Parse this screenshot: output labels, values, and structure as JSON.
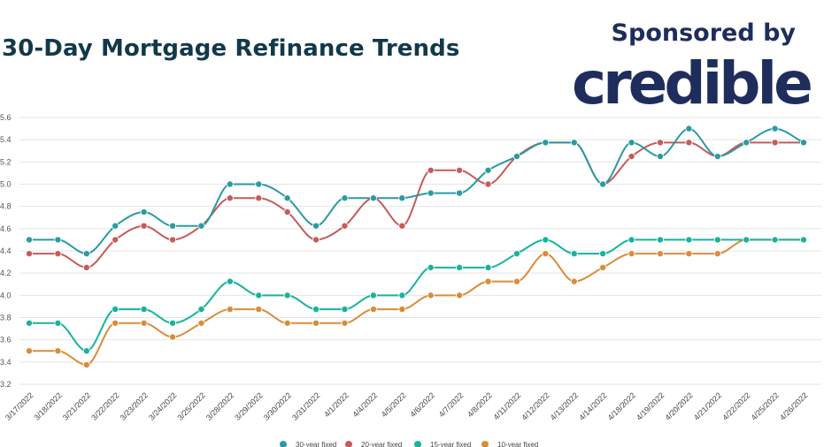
{
  "header": {
    "title": "30-Day Mortgage Refinance Trends",
    "sponsor_label": "Sponsored by",
    "brand": "credible"
  },
  "colors": {
    "title": "#12394a",
    "brand": "#1f2d5c",
    "grid": "#e4e4e4"
  },
  "chart_data": {
    "type": "line",
    "title": "30-Day Mortgage Refinance Trends",
    "xlabel": "",
    "ylabel": "",
    "ylim": [
      3.2,
      5.6
    ],
    "yticks": [
      "3.2",
      "3.4",
      "3.6",
      "3.8",
      "4.0",
      "4.2",
      "4.4",
      "4.6",
      "4.8",
      "5.0",
      "5.2",
      "5.4",
      "5.6"
    ],
    "grid": true,
    "legend_position": "bottom",
    "categories": [
      "3/17/2022",
      "3/18/2022",
      "3/21/2022",
      "3/22/2022",
      "3/23/2022",
      "3/24/2022",
      "3/25/2022",
      "3/28/2022",
      "3/29/2022",
      "3/30/2022",
      "3/31/2022",
      "4/1/2022",
      "4/4/2022",
      "4/5/2022",
      "4/6/2022",
      "4/7/2022",
      "4/8/2022",
      "4/11/2022",
      "4/12/2022",
      "4/13/2022",
      "4/14/2022",
      "4/18/2022",
      "4/19/2022",
      "4/20/2022",
      "4/21/2022",
      "4/22/2022",
      "4/25/2022",
      "4/26/2022"
    ],
    "series": [
      {
        "name": "30-year fixed",
        "color": "#2a9aa3",
        "values": [
          4.5,
          4.5,
          4.375,
          4.625,
          4.75,
          4.625,
          4.625,
          5.0,
          5.0,
          4.875,
          4.625,
          4.875,
          4.875,
          4.875,
          4.92,
          4.92,
          5.125,
          5.25,
          5.375,
          5.375,
          5.0,
          5.375,
          5.25,
          5.5,
          5.25,
          5.375,
          5.5,
          5.375
        ]
      },
      {
        "name": "20-year fixed",
        "color": "#c85a5a",
        "values": [
          4.375,
          4.375,
          4.25,
          4.5,
          4.625,
          4.5,
          4.625,
          4.875,
          4.875,
          4.75,
          4.5,
          4.625,
          4.875,
          4.625,
          5.125,
          5.125,
          5.0,
          5.25,
          5.375,
          5.375,
          5.0,
          5.25,
          5.375,
          5.375,
          5.25,
          5.375,
          5.375,
          5.375
        ]
      },
      {
        "name": "15-year fixed",
        "color": "#17b39c",
        "values": [
          3.75,
          3.75,
          3.5,
          3.875,
          3.875,
          3.75,
          3.875,
          4.125,
          4.0,
          4.0,
          3.875,
          3.875,
          4.0,
          4.0,
          4.25,
          4.25,
          4.25,
          4.375,
          4.5,
          4.375,
          4.375,
          4.5,
          4.5,
          4.5,
          4.5,
          4.5,
          4.5,
          4.5
        ]
      },
      {
        "name": "10-year fixed",
        "color": "#d98d3a",
        "values": [
          3.5,
          3.5,
          3.375,
          3.75,
          3.75,
          3.625,
          3.75,
          3.875,
          3.875,
          3.75,
          3.75,
          3.75,
          3.875,
          3.875,
          4.0,
          4.0,
          4.125,
          4.125,
          4.375,
          4.125,
          4.25,
          4.375,
          4.375,
          4.375,
          4.375,
          4.5,
          4.5,
          4.5
        ]
      }
    ]
  }
}
